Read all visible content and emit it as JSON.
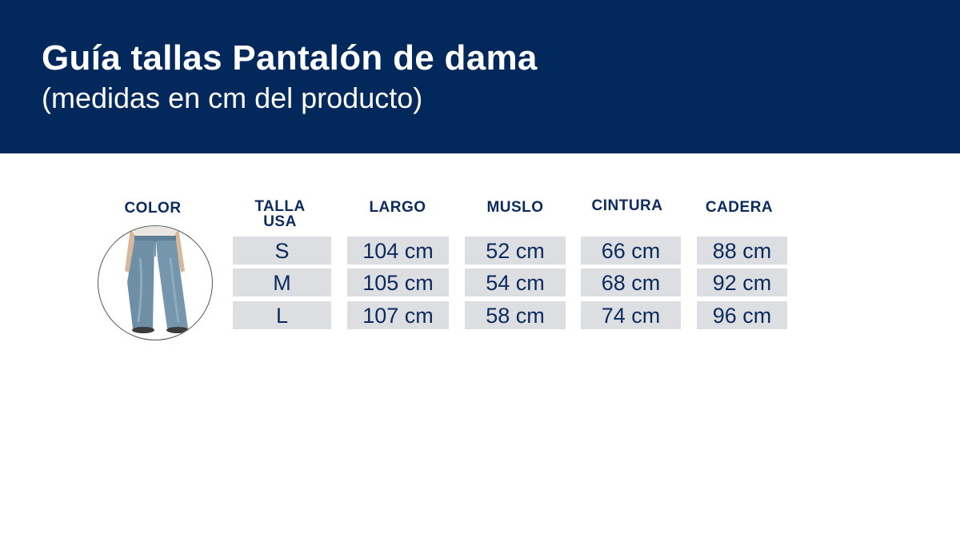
{
  "header": {
    "title": "Guía tallas Pantalón de dama",
    "subtitle": "(medidas en cm del producto)"
  },
  "table": {
    "headers": {
      "color": "COLOR",
      "talla_line1": "TALLA",
      "talla_line2": "USA",
      "largo": "LARGO",
      "muslo": "MUSLO",
      "cintura": "CINTURA",
      "cadera": "CADERA"
    },
    "rows": [
      {
        "talla": "S",
        "largo": "104 cm",
        "muslo": "52 cm",
        "cintura": "66 cm",
        "cadera": "88 cm"
      },
      {
        "talla": "M",
        "largo": "105 cm",
        "muslo": "54 cm",
        "cintura": "68 cm",
        "cadera": "92 cm"
      },
      {
        "talla": "L",
        "largo": "107 cm",
        "muslo": "58 cm",
        "cintura": "74 cm",
        "cadera": "96 cm"
      }
    ]
  },
  "colors": {
    "header_bg": "#02285c",
    "text_navy": "#0b2a5e",
    "cell_bg": "#dcdee1",
    "denim": "#6f8fa6"
  },
  "product_image": "jeans-photo-icon"
}
